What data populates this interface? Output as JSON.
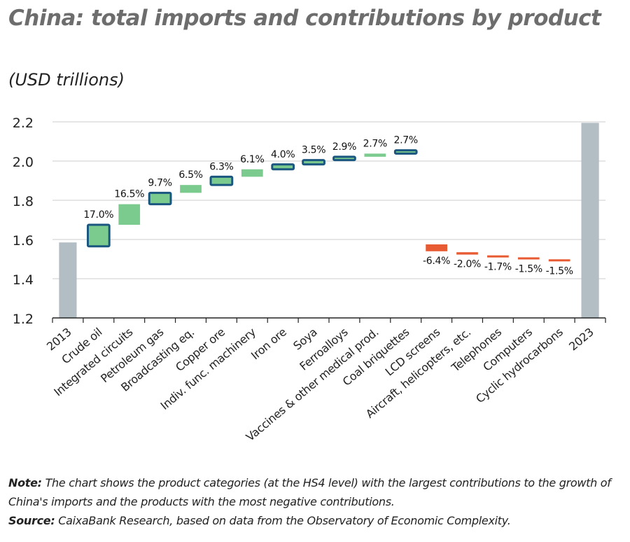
{
  "title": "China: total imports and contributions by product",
  "subtitle": "(USD trillions)",
  "chart_data": {
    "type": "waterfall",
    "ylim": [
      1.2,
      2.2
    ],
    "yticks": [
      "1.2",
      "1.4",
      "1.6",
      "1.8",
      "2.0",
      "2.2"
    ],
    "xlabel": "",
    "ylabel": "",
    "grid": true,
    "categories": [
      "2013",
      "Crude oil",
      "Integrated circuits",
      "Petroleum gas",
      "Broadcasting eq.",
      "Copper ore",
      "Indiv. func. machinery",
      "Iron ore",
      "Soya",
      "Ferroalloys",
      "Vaccines & other medical prod.",
      "Coal briquettes",
      "LCD screens",
      "Aircraft, helicopters, etc.",
      "Telephones",
      "Computers",
      "Cyclic hydrocarbons",
      "2023"
    ],
    "bars": [
      {
        "kind": "total",
        "start": 1.2,
        "end": 1.585,
        "label": ""
      },
      {
        "kind": "increase",
        "start": 1.565,
        "end": 1.675,
        "label": "17.0%",
        "outlined": true
      },
      {
        "kind": "increase",
        "start": 1.675,
        "end": 1.78,
        "label": "16.5%",
        "outlined": false
      },
      {
        "kind": "increase",
        "start": 1.78,
        "end": 1.838,
        "label": "9.7%",
        "outlined": true
      },
      {
        "kind": "increase",
        "start": 1.838,
        "end": 1.878,
        "label": "6.5%",
        "outlined": false
      },
      {
        "kind": "increase",
        "start": 1.878,
        "end": 1.92,
        "label": "6.3%",
        "outlined": true
      },
      {
        "kind": "increase",
        "start": 1.92,
        "end": 1.958,
        "label": "6.1%",
        "outlined": false
      },
      {
        "kind": "increase",
        "start": 1.958,
        "end": 1.983,
        "label": "4.0%",
        "outlined": true
      },
      {
        "kind": "increase",
        "start": 1.983,
        "end": 2.005,
        "label": "3.5%",
        "outlined": true
      },
      {
        "kind": "increase",
        "start": 2.005,
        "end": 2.022,
        "label": "2.9%",
        "outlined": true
      },
      {
        "kind": "increase",
        "start": 2.022,
        "end": 2.038,
        "label": "2.7%",
        "outlined": false
      },
      {
        "kind": "increase",
        "start": 2.038,
        "end": 2.055,
        "label": "2.7%",
        "outlined": true
      },
      {
        "kind": "decrease",
        "start": 1.575,
        "end": 1.54,
        "label": "-6.4%",
        "outlined": false
      },
      {
        "kind": "decrease",
        "start": 1.535,
        "end": 1.523,
        "label": "-2.0%",
        "outlined": false
      },
      {
        "kind": "decrease",
        "start": 1.519,
        "end": 1.511,
        "label": "-1.7%",
        "outlined": false
      },
      {
        "kind": "decrease",
        "start": 1.509,
        "end": 1.501,
        "label": "-1.5%",
        "outlined": false
      },
      {
        "kind": "decrease",
        "start": 1.499,
        "end": 1.492,
        "label": "-1.5%",
        "outlined": false
      },
      {
        "kind": "total",
        "start": 1.2,
        "end": 2.195,
        "label": ""
      }
    ],
    "colors": {
      "total": "#b3bec4",
      "increase": "#7ccb8e",
      "increase_outline": "#1a567f",
      "decrease": "#e85a31",
      "grid": "#cccccc"
    }
  },
  "footer": {
    "note_label": "Note:",
    "note_text": " The chart shows the product categories (at the HS4 level) with the largest contributions to the growth of China's imports and the products with the most negative contributions.",
    "source_label": "Source:",
    "source_text": " CaixaBank Research, based on data from the Observatory of Economic Complexity."
  }
}
